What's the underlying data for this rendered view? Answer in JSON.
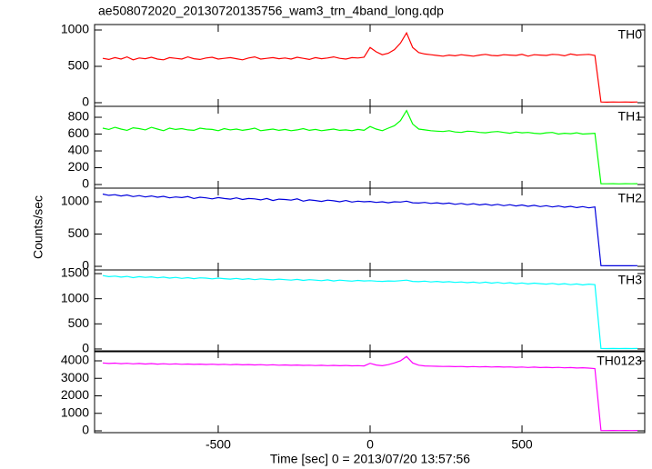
{
  "chart_data": [
    {
      "type": "line",
      "title": "ae508072020_20130720135756_wam3_trn_4band_long.qdp",
      "x": [
        -880,
        -860,
        -840,
        -820,
        -800,
        -780,
        -760,
        -740,
        -720,
        -700,
        -680,
        -660,
        -640,
        -620,
        -600,
        -580,
        -560,
        -540,
        -520,
        -500,
        -480,
        -460,
        -440,
        -420,
        -400,
        -380,
        -360,
        -340,
        -320,
        -300,
        -280,
        -260,
        -240,
        -220,
        -200,
        -180,
        -160,
        -140,
        -120,
        -100,
        -80,
        -60,
        -40,
        -20,
        0,
        20,
        40,
        60,
        80,
        100,
        120,
        140,
        160,
        180,
        200,
        220,
        240,
        260,
        280,
        300,
        320,
        340,
        360,
        380,
        400,
        420,
        440,
        460,
        480,
        500,
        520,
        540,
        560,
        580,
        600,
        620,
        640,
        660,
        680,
        700,
        720,
        740,
        760,
        780,
        800,
        820,
        840,
        860,
        880
      ],
      "series": [
        {
          "name": "TH0",
          "color": "#ff0000",
          "values": [
            610,
            595,
            620,
            600,
            630,
            590,
            615,
            605,
            625,
            600,
            590,
            620,
            610,
            600,
            630,
            605,
            595,
            615,
            625,
            600,
            610,
            620,
            605,
            590,
            615,
            630,
            600,
            610,
            620,
            605,
            615,
            600,
            625,
            610,
            595,
            620,
            605,
            615,
            630,
            610,
            600,
            620,
            615,
            625,
            760,
            700,
            660,
            680,
            730,
            820,
            960,
            760,
            690,
            670,
            660,
            650,
            640,
            655,
            645,
            660,
            650,
            640,
            655,
            665,
            650,
            645,
            660,
            655,
            650,
            665,
            640,
            660,
            655,
            650,
            665,
            660,
            645,
            670,
            655,
            660,
            665,
            650,
            10,
            8,
            10,
            9,
            10,
            8,
            10
          ]
        }
      ],
      "xlim": [
        -907,
        904
      ],
      "xticks": [
        -500,
        0,
        500
      ],
      "ylim": [
        -50,
        1075
      ],
      "yticks": [
        0,
        500,
        1000
      ]
    },
    {
      "type": "line",
      "x": [
        -880,
        -860,
        -840,
        -820,
        -800,
        -780,
        -760,
        -740,
        -720,
        -700,
        -680,
        -660,
        -640,
        -620,
        -600,
        -580,
        -560,
        -540,
        -520,
        -500,
        -480,
        -460,
        -440,
        -420,
        -400,
        -380,
        -360,
        -340,
        -320,
        -300,
        -280,
        -260,
        -240,
        -220,
        -200,
        -180,
        -160,
        -140,
        -120,
        -100,
        -80,
        -60,
        -40,
        -20,
        0,
        20,
        40,
        60,
        80,
        100,
        120,
        140,
        160,
        180,
        200,
        220,
        240,
        260,
        280,
        300,
        320,
        340,
        360,
        380,
        400,
        420,
        440,
        460,
        480,
        500,
        520,
        540,
        560,
        580,
        600,
        620,
        640,
        660,
        680,
        700,
        720,
        740,
        760,
        780,
        800,
        820,
        840,
        860,
        880
      ],
      "series": [
        {
          "name": "TH1",
          "color": "#00ff00",
          "values": [
            670,
            655,
            680,
            660,
            645,
            675,
            665,
            650,
            680,
            660,
            640,
            670,
            655,
            665,
            650,
            645,
            670,
            660,
            655,
            640,
            665,
            650,
            660,
            645,
            655,
            670,
            640,
            650,
            660,
            645,
            655,
            640,
            650,
            665,
            645,
            655,
            640,
            650,
            660,
            645,
            650,
            640,
            655,
            645,
            690,
            660,
            640,
            670,
            700,
            760,
            880,
            720,
            660,
            650,
            640,
            635,
            630,
            640,
            625,
            620,
            635,
            630,
            620,
            615,
            625,
            630,
            620,
            610,
            625,
            615,
            620,
            610,
            605,
            615,
            620,
            600,
            610,
            605,
            615,
            600,
            605,
            610,
            10,
            9,
            10,
            8,
            10,
            9,
            10
          ]
        }
      ],
      "xlim": [
        -907,
        904
      ],
      "xticks": [
        -500,
        0,
        500
      ],
      "ylim": [
        -43,
        930
      ],
      "yticks": [
        0,
        200,
        400,
        600,
        800
      ]
    },
    {
      "type": "line",
      "ylabel": "Counts/sec",
      "x": [
        -880,
        -860,
        -840,
        -820,
        -800,
        -780,
        -760,
        -740,
        -720,
        -700,
        -680,
        -660,
        -640,
        -620,
        -600,
        -580,
        -560,
        -540,
        -520,
        -500,
        -480,
        -460,
        -440,
        -420,
        -400,
        -380,
        -360,
        -340,
        -320,
        -300,
        -280,
        -260,
        -240,
        -220,
        -200,
        -180,
        -160,
        -140,
        -120,
        -100,
        -80,
        -60,
        -40,
        -20,
        0,
        20,
        40,
        60,
        80,
        100,
        120,
        140,
        160,
        180,
        200,
        220,
        240,
        260,
        280,
        300,
        320,
        340,
        360,
        380,
        400,
        420,
        440,
        460,
        480,
        500,
        520,
        540,
        560,
        580,
        600,
        620,
        640,
        660,
        680,
        700,
        720,
        740,
        760,
        780,
        800,
        820,
        840,
        860,
        880
      ],
      "series": [
        {
          "name": "TH2",
          "color": "#0000dd",
          "values": [
            1120,
            1100,
            1110,
            1090,
            1105,
            1080,
            1095,
            1075,
            1090,
            1070,
            1085,
            1060,
            1075,
            1065,
            1080,
            1050,
            1070,
            1060,
            1045,
            1065,
            1050,
            1040,
            1060,
            1035,
            1050,
            1045,
            1030,
            1050,
            1020,
            1040,
            1035,
            1025,
            1045,
            1010,
            1030,
            1020,
            1005,
            1025,
            1015,
            1000,
            1020,
            995,
            1010,
            1000,
            1005,
            990,
            1000,
            985,
            1000,
            995,
            1010,
            985,
            980,
            990,
            975,
            985,
            970,
            980,
            960,
            975,
            955,
            970,
            950,
            965,
            945,
            960,
            940,
            955,
            935,
            950,
            930,
            945,
            925,
            940,
            920,
            935,
            915,
            930,
            910,
            925,
            905,
            920,
            10,
            9,
            10,
            9,
            10,
            9,
            10
          ]
        }
      ],
      "xlim": [
        -907,
        904
      ],
      "xticks": [
        -500,
        0,
        500
      ],
      "ylim": [
        -56,
        1211
      ],
      "yticks": [
        0,
        500,
        1000
      ]
    },
    {
      "type": "line",
      "x": [
        -880,
        -860,
        -840,
        -820,
        -800,
        -780,
        -760,
        -740,
        -720,
        -700,
        -680,
        -660,
        -640,
        -620,
        -600,
        -580,
        -560,
        -540,
        -520,
        -500,
        -480,
        -460,
        -440,
        -420,
        -400,
        -380,
        -360,
        -340,
        -320,
        -300,
        -280,
        -260,
        -240,
        -220,
        -200,
        -180,
        -160,
        -140,
        -120,
        -100,
        -80,
        -60,
        -40,
        -20,
        0,
        20,
        40,
        60,
        80,
        100,
        120,
        140,
        160,
        180,
        200,
        220,
        240,
        260,
        280,
        300,
        320,
        340,
        360,
        380,
        400,
        420,
        440,
        460,
        480,
        500,
        520,
        540,
        560,
        580,
        600,
        620,
        640,
        660,
        680,
        700,
        720,
        740,
        760,
        780,
        800,
        820,
        840,
        860,
        880
      ],
      "series": [
        {
          "name": "TH3",
          "color": "#00ffff",
          "values": [
            1460,
            1440,
            1450,
            1430,
            1445,
            1420,
            1440,
            1425,
            1435,
            1415,
            1430,
            1410,
            1425,
            1405,
            1420,
            1400,
            1415,
            1410,
            1395,
            1410,
            1400,
            1390,
            1405,
            1385,
            1400,
            1380,
            1395,
            1385,
            1375,
            1390,
            1380,
            1370,
            1385,
            1365,
            1380,
            1370,
            1360,
            1375,
            1355,
            1370,
            1360,
            1350,
            1365,
            1355,
            1360,
            1350,
            1345,
            1355,
            1350,
            1360,
            1370,
            1345,
            1340,
            1350,
            1335,
            1345,
            1330,
            1340,
            1325,
            1335,
            1320,
            1330,
            1315,
            1330,
            1310,
            1325,
            1305,
            1320,
            1300,
            1315,
            1295,
            1310,
            1300,
            1290,
            1305,
            1285,
            1300,
            1280,
            1295,
            1275,
            1290,
            1280,
            10,
            8,
            10,
            9,
            10,
            8,
            10
          ]
        }
      ],
      "xlim": [
        -907,
        904
      ],
      "xticks": [
        -500,
        0,
        500
      ],
      "ylim": [
        -55,
        1573
      ],
      "yticks": [
        0,
        500,
        1000,
        1500
      ]
    },
    {
      "type": "line",
      "xlabel": "Time [sec] 0 = 2013/07/20 13:57:56",
      "x": [
        -880,
        -860,
        -840,
        -820,
        -800,
        -780,
        -760,
        -740,
        -720,
        -700,
        -680,
        -660,
        -640,
        -620,
        -600,
        -580,
        -560,
        -540,
        -520,
        -500,
        -480,
        -460,
        -440,
        -420,
        -400,
        -380,
        -360,
        -340,
        -320,
        -300,
        -280,
        -260,
        -240,
        -220,
        -200,
        -180,
        -160,
        -140,
        -120,
        -100,
        -80,
        -60,
        -40,
        -20,
        0,
        20,
        40,
        60,
        80,
        100,
        120,
        140,
        160,
        180,
        200,
        220,
        240,
        260,
        280,
        300,
        320,
        340,
        360,
        380,
        400,
        420,
        440,
        460,
        480,
        500,
        520,
        540,
        560,
        580,
        600,
        620,
        640,
        660,
        680,
        700,
        720,
        740,
        760,
        780,
        800,
        820,
        840,
        860,
        880
      ],
      "series": [
        {
          "name": "TH0123",
          "color": "#ff00ff",
          "values": [
            3880,
            3850,
            3870,
            3840,
            3860,
            3830,
            3850,
            3820,
            3845,
            3815,
            3835,
            3810,
            3830,
            3800,
            3820,
            3795,
            3815,
            3790,
            3805,
            3785,
            3800,
            3775,
            3795,
            3770,
            3785,
            3765,
            3780,
            3755,
            3775,
            3750,
            3765,
            3745,
            3760,
            3740,
            3750,
            3730,
            3745,
            3725,
            3740,
            3720,
            3735,
            3715,
            3725,
            3710,
            3860,
            3760,
            3720,
            3780,
            3880,
            4000,
            4250,
            3880,
            3750,
            3710,
            3700,
            3690,
            3675,
            3685,
            3665,
            3680,
            3655,
            3670,
            3650,
            3665,
            3645,
            3660,
            3640,
            3650,
            3630,
            3645,
            3620,
            3640,
            3615,
            3630,
            3610,
            3625,
            3600,
            3615,
            3590,
            3605,
            3585,
            3560,
            20,
            15,
            20,
            18,
            20,
            15,
            20
          ]
        }
      ],
      "xlim": [
        -907,
        904
      ],
      "xticks": [
        -500,
        0,
        500
      ],
      "ylim": [
        -104,
        4571
      ],
      "yticks": [
        0,
        1000,
        2000,
        3000,
        4000
      ]
    }
  ]
}
